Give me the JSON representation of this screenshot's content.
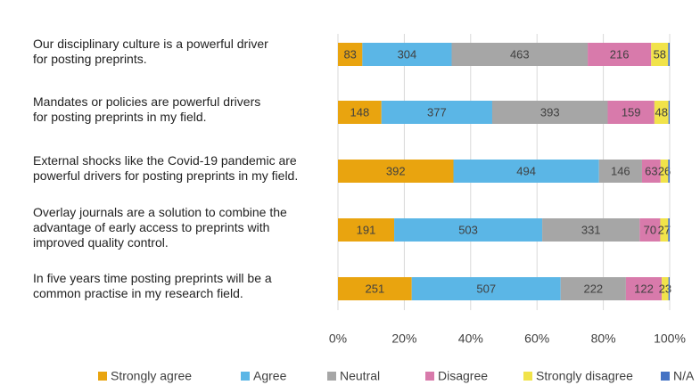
{
  "chart_data": {
    "type": "bar",
    "orientation": "horizontal",
    "stacking": "percent",
    "categories": [
      "Our disciplinary culture is a powerful driver\nfor posting preprints.",
      "Mandates or policies are powerful drivers\nfor posting preprints in my field.",
      "External shocks like the Covid-19 pandemic are\npowerful drivers for posting preprints in my field.",
      "Overlay journals are a solution to combine the\nadvantage of early access to preprints with\nimproved quality control.",
      "In five years time posting preprints will be a\ncommon practise in my research field."
    ],
    "series": [
      {
        "name": "Strongly agree",
        "color": "#e9a40f",
        "data_labels": true,
        "values": [
          83,
          148,
          392,
          191,
          251
        ]
      },
      {
        "name": "Agree",
        "color": "#5bb6e6",
        "data_labels": true,
        "values": [
          304,
          377,
          494,
          503,
          507
        ]
      },
      {
        "name": "Neutral",
        "color": "#a6a6a6",
        "data_labels": true,
        "values": [
          463,
          393,
          146,
          331,
          222
        ]
      },
      {
        "name": "Disagree",
        "color": "#d87aab",
        "data_labels": true,
        "values": [
          216,
          159,
          63,
          70,
          122
        ]
      },
      {
        "name": "Strongly disagree",
        "color": "#f1e34a",
        "data_labels": true,
        "values": [
          58,
          48,
          26,
          27,
          23
        ]
      },
      {
        "name": "N/A",
        "color": "#4472c4",
        "data_labels": false,
        "values": [
          5,
          4,
          5,
          5,
          4
        ]
      }
    ],
    "xlim": [
      0,
      100
    ],
    "xticks": [
      {
        "value": 0,
        "label": "0%"
      },
      {
        "value": 20,
        "label": "20%"
      },
      {
        "value": 40,
        "label": "40%"
      },
      {
        "value": 60,
        "label": "60%"
      },
      {
        "value": 80,
        "label": "80%"
      },
      {
        "value": 100,
        "label": "100%"
      }
    ],
    "grid": true,
    "legend": "bottom"
  }
}
